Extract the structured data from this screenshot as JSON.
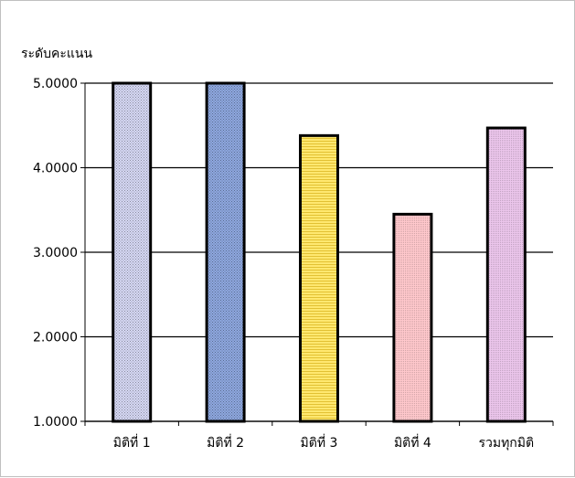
{
  "chart_data": {
    "type": "bar",
    "title": "",
    "xlabel": "",
    "ylabel": "ระดับคะแนน",
    "categories": [
      "มิติที่ 1",
      "มิติที่ 2",
      "มิติที่ 3",
      "มิติที่ 4",
      "รวมทุกมิติ"
    ],
    "values": [
      5.0,
      5.0,
      4.38,
      3.45,
      4.47
    ],
    "ylim": [
      1.0,
      5.0
    ],
    "yticks": [
      "1.0000",
      "2.0000",
      "3.0000",
      "4.0000",
      "5.0000"
    ],
    "grid": true,
    "legend": "none",
    "bar_colors": [
      "#d6d8f4",
      "#8ea8e0",
      "#ffe870",
      "#ffc8cc",
      "#ecc6ec"
    ],
    "bar_stroke": "#000000"
  }
}
